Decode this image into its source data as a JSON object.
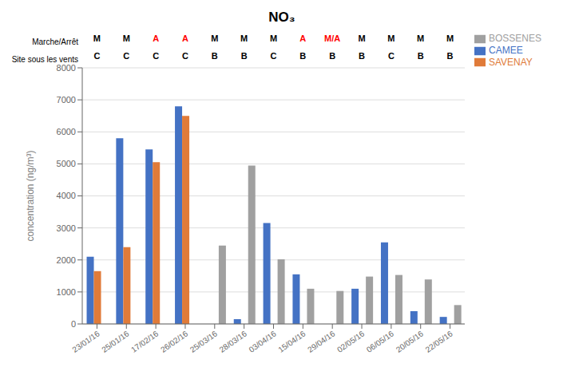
{
  "chart_data": {
    "type": "bar",
    "title": "NO₃",
    "ylabel": "concentration (ng/m³)",
    "categories": [
      "23/01/16",
      "25/01/16",
      "17/02/16",
      "26/02/16",
      "25/03/16",
      "28/03/16",
      "03/04/16",
      "15/04/16",
      "29/04/16",
      "02/05/16",
      "06/05/16",
      "20/05/16",
      "22/05/16"
    ],
    "series": [
      {
        "name": "CAMEE",
        "color": "#4472c4",
        "values": [
          2100,
          5800,
          5450,
          6800,
          null,
          150,
          3150,
          1550,
          null,
          1100,
          2550,
          400,
          220
        ]
      },
      {
        "name": "SAVENAY",
        "color": "#e07b39",
        "values": [
          1650,
          2400,
          5050,
          6500,
          null,
          null,
          null,
          null,
          null,
          null,
          null,
          null,
          null
        ]
      },
      {
        "name": "BOSSENES",
        "color": "#a0a0a0",
        "values": [
          null,
          null,
          null,
          null,
          2450,
          4950,
          2020,
          1100,
          1030,
          1480,
          1530,
          1390,
          590
        ]
      }
    ],
    "ylim": [
      0,
      8000
    ],
    "yticks": [
      0,
      1000,
      2000,
      3000,
      4000,
      5000,
      6000,
      7000,
      8000
    ],
    "grid": true,
    "legend": "right",
    "header_rows": [
      {
        "label": "Site sous les vents",
        "values": [
          "C",
          "C",
          "C",
          "C",
          "B",
          "B",
          "C",
          "B",
          "B",
          "B",
          "C",
          "B",
          "B"
        ]
      },
      {
        "label": "Marche/Arrêt",
        "values": [
          "M",
          "M",
          "A",
          "A",
          "M",
          "M",
          "M",
          "A",
          "M/A",
          "M",
          "M",
          "M",
          "M"
        ],
        "colors": [
          "black",
          "black",
          "red",
          "red",
          "black",
          "black",
          "black",
          "red",
          "red",
          "black",
          "black",
          "black",
          "black"
        ]
      }
    ]
  }
}
